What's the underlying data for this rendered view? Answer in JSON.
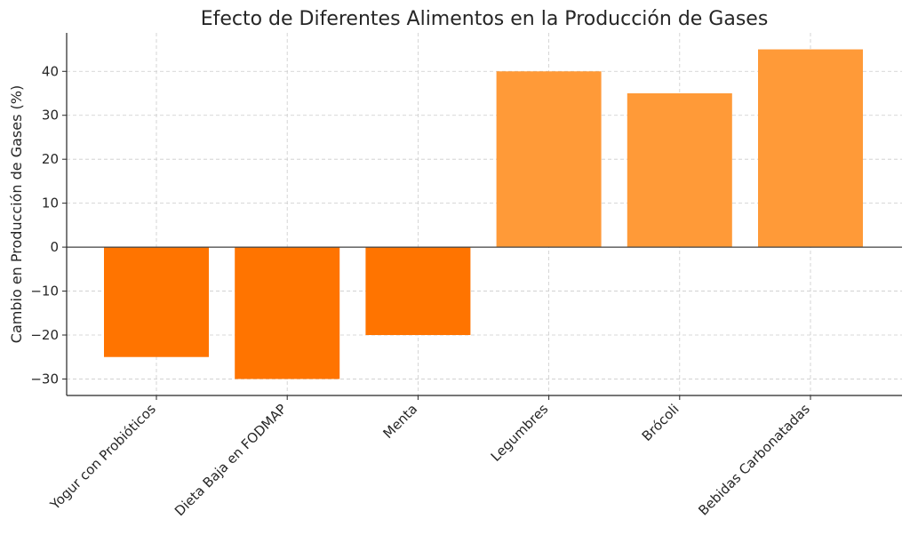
{
  "chart_data": {
    "type": "bar",
    "title": "Efecto de Diferentes Alimentos en la Producción de Gases",
    "xlabel": "",
    "ylabel": "Cambio en Producción de Gases (%)",
    "categories": [
      "Yogur con Probióticos",
      "Dieta Baja en FODMAP",
      "Menta",
      "Legumbres",
      "Brócoli",
      "Bebidas Carbonatadas"
    ],
    "values": [
      -25,
      -30,
      -20,
      40,
      35,
      45
    ],
    "ylim": [
      -33.75,
      48.75
    ],
    "yticks": [
      -30,
      -20,
      -10,
      0,
      10,
      20,
      30,
      40
    ],
    "ytick_labels": [
      "−30",
      "−20",
      "−10",
      "0",
      "10",
      "20",
      "30",
      "40"
    ],
    "grid": true,
    "colors": {
      "negative": "#ff7400",
      "positive": "#ff9a38",
      "grid": "#cccccc",
      "axis": "#262626",
      "zero_line": "#404040"
    }
  }
}
